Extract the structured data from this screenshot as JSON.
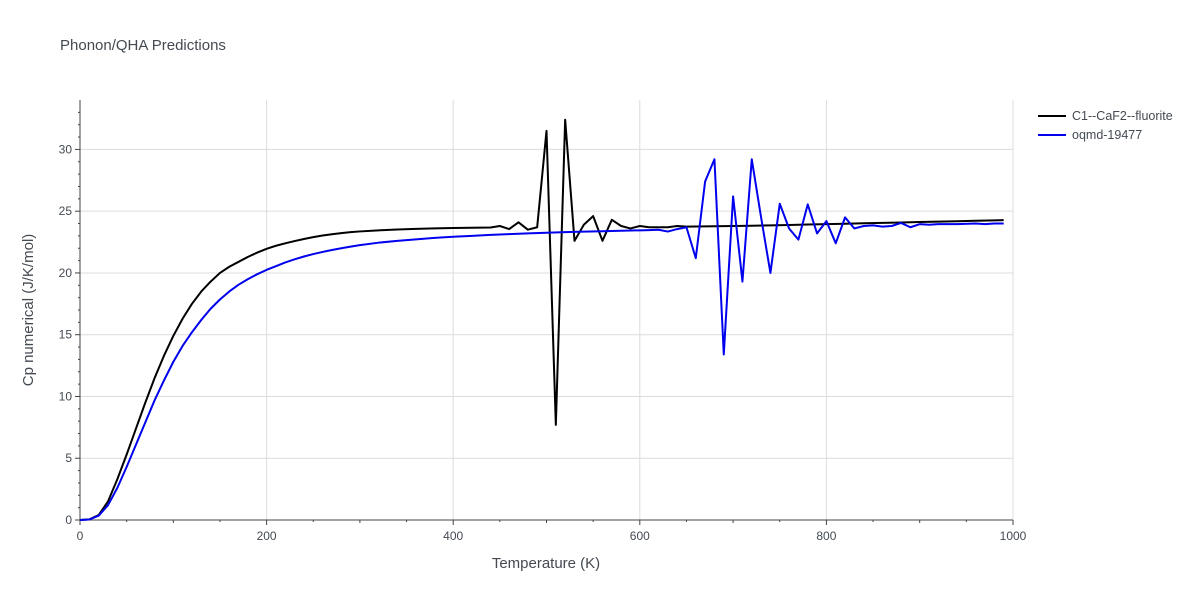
{
  "chart_data": {
    "type": "line",
    "title": "Phonon/QHA Predictions",
    "xlabel": "Temperature (K)",
    "ylabel": "Cp numerical (J/K/mol)",
    "xlim": [
      0,
      1000
    ],
    "ylim": [
      0,
      34
    ],
    "xticks": [
      0,
      200,
      400,
      600,
      800,
      1000
    ],
    "yticks": [
      0,
      5,
      10,
      15,
      20,
      25,
      30
    ],
    "grid": true,
    "legend_position": "top-right",
    "series": [
      {
        "name": "C1--CaF2--fluorite",
        "color": "#000000",
        "x": [
          0,
          10,
          20,
          30,
          40,
          50,
          60,
          70,
          80,
          90,
          100,
          110,
          120,
          130,
          140,
          150,
          160,
          170,
          180,
          190,
          200,
          210,
          220,
          230,
          240,
          250,
          260,
          270,
          280,
          290,
          300,
          320,
          340,
          360,
          380,
          400,
          420,
          440,
          450,
          460,
          470,
          480,
          490,
          500,
          510,
          520,
          530,
          540,
          550,
          560,
          570,
          580,
          590,
          600,
          610,
          620,
          630,
          640,
          650,
          660,
          680,
          700,
          720,
          740,
          760,
          780,
          800,
          820,
          840,
          860,
          880,
          900,
          920,
          940,
          960,
          980,
          990
        ],
        "y": [
          0,
          0.05,
          0.4,
          1.5,
          3.3,
          5.3,
          7.4,
          9.5,
          11.5,
          13.3,
          14.9,
          16.3,
          17.5,
          18.5,
          19.3,
          20.0,
          20.5,
          20.9,
          21.3,
          21.65,
          21.95,
          22.2,
          22.4,
          22.58,
          22.75,
          22.9,
          23.03,
          23.13,
          23.22,
          23.3,
          23.36,
          23.45,
          23.52,
          23.57,
          23.61,
          23.64,
          23.66,
          23.68,
          23.8,
          23.55,
          24.1,
          23.5,
          23.7,
          31.5,
          7.7,
          32.4,
          22.6,
          23.9,
          24.6,
          22.6,
          24.3,
          23.8,
          23.6,
          23.8,
          23.7,
          23.7,
          23.7,
          23.8,
          23.75,
          23.76,
          23.78,
          23.8,
          23.82,
          23.85,
          23.88,
          23.92,
          23.95,
          23.98,
          24.02,
          24.05,
          24.08,
          24.12,
          24.15,
          24.18,
          24.22,
          24.26,
          24.28
        ]
      },
      {
        "name": "oqmd-19477",
        "color": "#0000ee",
        "x": [
          0,
          10,
          20,
          30,
          40,
          50,
          60,
          70,
          80,
          90,
          100,
          110,
          120,
          130,
          140,
          150,
          160,
          170,
          180,
          190,
          200,
          210,
          220,
          230,
          240,
          250,
          260,
          270,
          280,
          290,
          300,
          320,
          340,
          360,
          380,
          400,
          420,
          440,
          460,
          480,
          500,
          520,
          540,
          560,
          580,
          600,
          610,
          620,
          630,
          640,
          650,
          660,
          670,
          680,
          690,
          700,
          710,
          720,
          730,
          740,
          750,
          760,
          770,
          780,
          790,
          800,
          810,
          820,
          830,
          840,
          850,
          860,
          870,
          880,
          890,
          900,
          910,
          920,
          940,
          960,
          970,
          980,
          990
        ],
        "y": [
          0,
          0.04,
          0.35,
          1.2,
          2.6,
          4.3,
          6.1,
          7.9,
          9.7,
          11.3,
          12.8,
          14.1,
          15.2,
          16.2,
          17.1,
          17.85,
          18.5,
          19.05,
          19.5,
          19.9,
          20.25,
          20.55,
          20.85,
          21.1,
          21.33,
          21.53,
          21.7,
          21.86,
          22.0,
          22.13,
          22.25,
          22.45,
          22.6,
          22.72,
          22.84,
          22.93,
          23.0,
          23.08,
          23.14,
          23.2,
          23.25,
          23.3,
          23.34,
          23.38,
          23.42,
          23.45,
          23.47,
          23.5,
          23.35,
          23.55,
          23.7,
          21.2,
          27.4,
          29.2,
          13.4,
          26.2,
          19.3,
          29.2,
          24.5,
          20.0,
          25.6,
          23.6,
          22.7,
          25.55,
          23.2,
          24.2,
          22.4,
          24.5,
          23.6,
          23.8,
          23.85,
          23.75,
          23.8,
          24.05,
          23.7,
          23.95,
          23.9,
          23.95,
          23.95,
          24.0,
          23.95,
          24.0,
          24.0
        ]
      }
    ]
  }
}
